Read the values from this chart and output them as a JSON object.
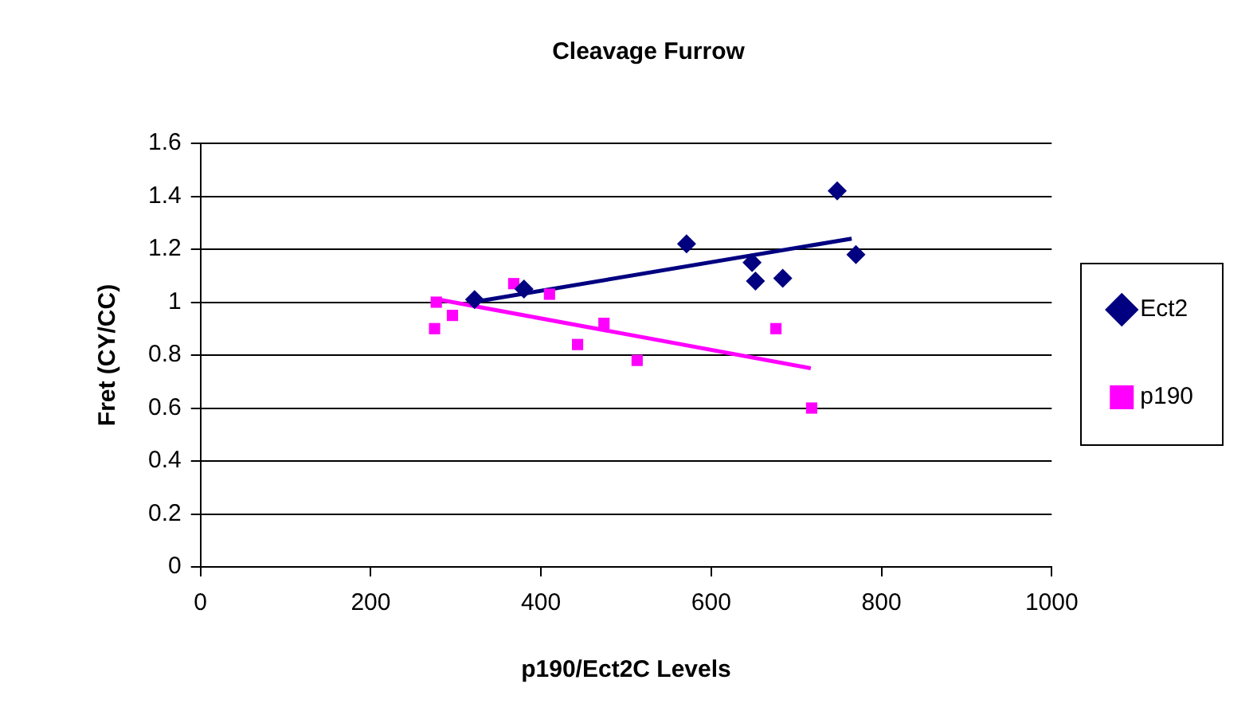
{
  "chart_data": {
    "type": "scatter",
    "title": "Cleavage Furrow",
    "xlabel": "p190/Ect2C Levels",
    "ylabel": "Fret (CY/CC)",
    "xlim": [
      0,
      1000
    ],
    "xticks": [
      0,
      200,
      400,
      600,
      800,
      1000
    ],
    "ylim": [
      0,
      1.6
    ],
    "yticks": [
      0,
      0.2,
      0.4,
      0.6,
      0.8,
      1,
      1.2,
      1.4,
      1.6
    ],
    "grid": "y",
    "legend": "right",
    "series": [
      {
        "name": "Ect2",
        "marker": "diamond",
        "color": "#000080",
        "x": [
          322,
          380,
          571,
          648,
          652,
          684,
          748,
          770
        ],
        "values": [
          1.01,
          1.05,
          1.22,
          1.15,
          1.08,
          1.09,
          1.42,
          1.18
        ]
      },
      {
        "name": "p190",
        "marker": "square",
        "color": "#ff00ff",
        "x": [
          277,
          275,
          296,
          368,
          410,
          443,
          474,
          513,
          676,
          718
        ],
        "values": [
          1.0,
          0.9,
          0.95,
          1.07,
          1.03,
          0.84,
          0.92,
          0.78,
          0.9,
          0.6
        ]
      },
      {
        "type": "line",
        "marker": "none",
        "color": "#000080",
        "x": [
          320,
          765
        ],
        "values": [
          1.0,
          1.24
        ]
      },
      {
        "type": "line",
        "marker": "none",
        "color": "#ff00ff",
        "x": [
          280,
          717
        ],
        "values": [
          1.01,
          0.75
        ]
      }
    ]
  }
}
